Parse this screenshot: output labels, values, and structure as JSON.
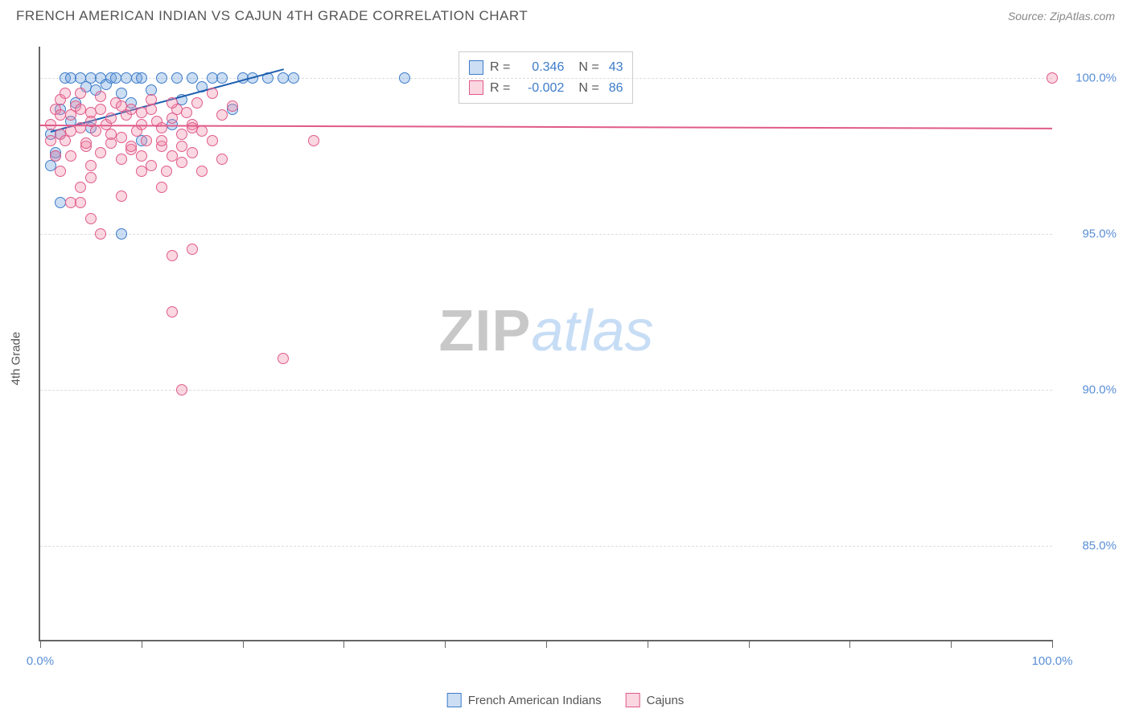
{
  "title": "FRENCH AMERICAN INDIAN VS CAJUN 4TH GRADE CORRELATION CHART",
  "source": "Source: ZipAtlas.com",
  "watermark": {
    "part1": "ZIP",
    "part2": "atlas"
  },
  "chart": {
    "type": "scatter",
    "ylabel": "4th Grade",
    "xlim": [
      0,
      100
    ],
    "ylim": [
      82,
      101
    ],
    "background_color": "#ffffff",
    "grid_color": "#dddddd",
    "axis_color": "#666666",
    "ytick_labels": [
      "85.0%",
      "90.0%",
      "95.0%",
      "100.0%"
    ],
    "ytick_values": [
      85,
      90,
      95,
      100
    ],
    "xtick_values": [
      0,
      10,
      20,
      30,
      40,
      50,
      60,
      70,
      80,
      90,
      100
    ],
    "xtick_labels": {
      "0": "0.0%",
      "100": "100.0%"
    },
    "marker_radius": 7,
    "marker_stroke_width": 1.5,
    "series": [
      {
        "name": "French American Indians",
        "fill_color": "rgba(110,160,220,0.35)",
        "stroke_color": "#3d7cc9",
        "R_label": "R =",
        "R_value": "0.346",
        "N_label": "N =",
        "N_value": "43",
        "points": [
          [
            1,
            98.2
          ],
          [
            1.5,
            97.5
          ],
          [
            2,
            99.0
          ],
          [
            2.5,
            100.0
          ],
          [
            3,
            98.6
          ],
          [
            3,
            100.0
          ],
          [
            3.5,
            99.2
          ],
          [
            4,
            100.0
          ],
          [
            4.5,
            99.7
          ],
          [
            5,
            100.0
          ],
          [
            5,
            98.4
          ],
          [
            5.5,
            99.6
          ],
          [
            6,
            100.0
          ],
          [
            6.5,
            99.8
          ],
          [
            7,
            100.0
          ],
          [
            7.5,
            100.0
          ],
          [
            8,
            99.5
          ],
          [
            8.5,
            100.0
          ],
          [
            9,
            99.2
          ],
          [
            9.5,
            100.0
          ],
          [
            10,
            98.0
          ],
          [
            10,
            100.0
          ],
          [
            11,
            99.6
          ],
          [
            12,
            100.0
          ],
          [
            13,
            98.5
          ],
          [
            13.5,
            100.0
          ],
          [
            14,
            99.3
          ],
          [
            15,
            100.0
          ],
          [
            16,
            99.7
          ],
          [
            17,
            100.0
          ],
          [
            18,
            100.0
          ],
          [
            19,
            99.0
          ],
          [
            20,
            100.0
          ],
          [
            21,
            100.0
          ],
          [
            22.5,
            100.0
          ],
          [
            24,
            100.0
          ],
          [
            25,
            100.0
          ],
          [
            2,
            96.0
          ],
          [
            1.5,
            97.6
          ],
          [
            8,
            95.0
          ],
          [
            1,
            97.2
          ],
          [
            36,
            100.0
          ],
          [
            2,
            98.2
          ]
        ],
        "trendline": {
          "x1": 1,
          "y1": 98.3,
          "x2": 24,
          "y2": 100.3,
          "color": "#1f5fb0",
          "width": 2
        }
      },
      {
        "name": "Cajuns",
        "fill_color": "rgba(240,140,170,0.35)",
        "stroke_color": "#e05a8a",
        "R_label": "R =",
        "R_value": "-0.002",
        "N_label": "N =",
        "N_value": "86",
        "points": [
          [
            1,
            98.5
          ],
          [
            1.5,
            99.0
          ],
          [
            2,
            98.2
          ],
          [
            2,
            99.3
          ],
          [
            2.5,
            98.0
          ],
          [
            3,
            98.8
          ],
          [
            3,
            97.5
          ],
          [
            3.5,
            99.1
          ],
          [
            4,
            98.4
          ],
          [
            4,
            99.5
          ],
          [
            4.5,
            97.8
          ],
          [
            5,
            98.9
          ],
          [
            5,
            97.2
          ],
          [
            5.5,
            98.3
          ],
          [
            6,
            99.0
          ],
          [
            6,
            97.6
          ],
          [
            6.5,
            98.5
          ],
          [
            7,
            97.9
          ],
          [
            7,
            98.7
          ],
          [
            7.5,
            99.2
          ],
          [
            8,
            98.1
          ],
          [
            8,
            97.4
          ],
          [
            8.5,
            98.8
          ],
          [
            9,
            97.7
          ],
          [
            9,
            99.0
          ],
          [
            9.5,
            98.3
          ],
          [
            10,
            97.5
          ],
          [
            10,
            98.9
          ],
          [
            10.5,
            98.0
          ],
          [
            11,
            99.3
          ],
          [
            11,
            97.2
          ],
          [
            11.5,
            98.6
          ],
          [
            12,
            97.8
          ],
          [
            12,
            98.4
          ],
          [
            12.5,
            97.0
          ],
          [
            13,
            98.7
          ],
          [
            13,
            97.5
          ],
          [
            13.5,
            99.0
          ],
          [
            14,
            98.2
          ],
          [
            14,
            97.3
          ],
          [
            14.5,
            98.9
          ],
          [
            15,
            97.6
          ],
          [
            15,
            98.5
          ],
          [
            15.5,
            99.2
          ],
          [
            16,
            97.0
          ],
          [
            16,
            98.3
          ],
          [
            17,
            99.5
          ],
          [
            17,
            98.0
          ],
          [
            18,
            98.8
          ],
          [
            18,
            97.4
          ],
          [
            19,
            99.1
          ],
          [
            4,
            96.5
          ],
          [
            5,
            96.8
          ],
          [
            8,
            96.2
          ],
          [
            10,
            97.0
          ],
          [
            12,
            96.5
          ],
          [
            6,
            95.0
          ],
          [
            13,
            94.3
          ],
          [
            2,
            97.0
          ],
          [
            3,
            96.0
          ],
          [
            4,
            96.0
          ],
          [
            5,
            95.5
          ],
          [
            15,
            94.5
          ],
          [
            13,
            92.5
          ],
          [
            14,
            90.0
          ],
          [
            24,
            91.0
          ],
          [
            27,
            98.0
          ],
          [
            1,
            98.0
          ],
          [
            1.5,
            97.5
          ],
          [
            2,
            98.8
          ],
          [
            2.5,
            99.5
          ],
          [
            3,
            98.3
          ],
          [
            4,
            99.0
          ],
          [
            4.5,
            97.9
          ],
          [
            5,
            98.6
          ],
          [
            6,
            99.4
          ],
          [
            7,
            98.2
          ],
          [
            8,
            99.1
          ],
          [
            9,
            97.8
          ],
          [
            10,
            98.5
          ],
          [
            11,
            99.0
          ],
          [
            12,
            98.0
          ],
          [
            13,
            99.2
          ],
          [
            14,
            97.8
          ],
          [
            15,
            98.4
          ],
          [
            100,
            100.0
          ]
        ],
        "trendline": {
          "x1": 0,
          "y1": 98.5,
          "x2": 100,
          "y2": 98.4,
          "color": "#e05a8a",
          "width": 2
        }
      }
    ]
  },
  "legend_bottom": {
    "series1": "French American Indians",
    "series2": "Cajuns"
  }
}
